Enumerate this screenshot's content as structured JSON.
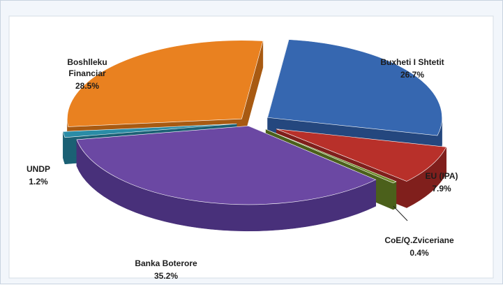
{
  "chart_data": {
    "type": "pie",
    "style": "3d-exploded",
    "slices": [
      {
        "name": "Buxheti I Shtetit",
        "value": 26.7,
        "label": "26.7%",
        "color": "#3667b0",
        "side": "#24477e"
      },
      {
        "name": "EU (IPA)",
        "value": 7.9,
        "label": "7.9%",
        "color": "#b8302a",
        "side": "#801f1c"
      },
      {
        "name": "CoE/Q.Zviceriane",
        "value": 0.4,
        "label": "0.4%",
        "color": "#6f8b2c",
        "side": "#4b601b"
      },
      {
        "name": "Banka Boterore",
        "value": 35.2,
        "label": "35.2%",
        "color": "#6b48a3",
        "side": "#48307a"
      },
      {
        "name": "UNDP",
        "value": 1.2,
        "label": "1.2%",
        "color": "#2a8ca6",
        "side": "#1b6074"
      },
      {
        "name": "Boshlleku Financiar",
        "value": 28.5,
        "label": "28.5%",
        "color": "#e98120",
        "side": "#a85a12"
      }
    ],
    "legend": "none"
  }
}
